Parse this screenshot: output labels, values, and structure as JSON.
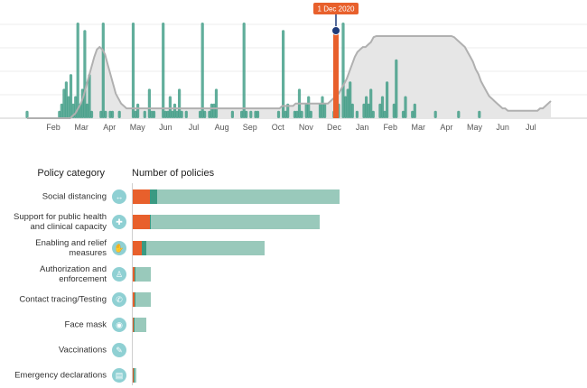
{
  "timeline": {
    "month_labels": [
      "Feb",
      "Mar",
      "Apr",
      "May",
      "Jun",
      "Jul",
      "Aug",
      "Sep",
      "Oct",
      "Nov",
      "Dec",
      "Jan",
      "Feb",
      "Mar",
      "Apr",
      "May",
      "Jun",
      "Jul"
    ],
    "marker_label": "1 Dec 2020",
    "marker_month_index": 10,
    "marker_color": "#e8602c",
    "marker_dot_color": "#1f3b7a",
    "bar_color": "#3a9a82",
    "case_area_color": "#e6e6e6",
    "case_line_color": "#b0b0b0",
    "weekly_policy_counts": [
      1,
      0,
      0,
      0,
      0,
      0,
      0,
      0,
      0,
      0,
      0,
      0,
      0,
      0,
      1,
      2,
      4,
      5,
      3,
      6,
      2,
      3,
      13,
      2,
      4,
      12,
      2,
      6,
      1,
      0,
      0,
      0,
      1,
      13,
      1,
      0,
      1,
      1,
      0,
      0,
      1,
      0,
      0,
      0,
      0,
      0,
      13,
      1,
      2,
      0,
      0,
      1,
      0,
      4,
      1,
      1,
      0,
      0,
      0,
      13,
      1,
      1,
      3,
      1,
      2,
      1,
      4,
      1,
      0,
      1,
      0,
      0,
      0,
      0,
      0,
      1,
      13,
      1,
      0,
      1,
      2,
      2,
      4,
      0,
      0,
      0,
      0,
      0,
      0,
      1,
      0,
      0,
      0,
      1,
      13,
      1,
      0,
      1,
      0,
      1,
      1,
      0,
      0,
      0,
      0,
      0,
      0,
      0,
      0,
      1,
      0,
      12,
      1,
      2,
      0,
      0,
      1,
      1,
      4,
      1,
      0,
      2,
      3,
      1,
      0,
      0,
      0,
      2,
      3,
      2,
      0,
      0,
      0,
      1,
      0,
      2,
      0,
      13,
      3,
      4,
      5,
      2,
      0,
      1,
      0,
      0,
      2,
      3,
      2,
      4,
      1,
      0,
      0,
      2,
      3,
      1,
      5,
      0,
      0,
      2,
      8,
      0,
      0,
      1,
      3,
      0,
      0,
      1,
      2,
      0,
      0,
      0,
      0,
      0,
      0,
      0,
      0,
      1,
      0,
      0,
      0,
      0,
      0,
      0,
      0,
      0,
      0,
      1,
      0,
      0,
      0,
      0,
      0,
      0,
      0,
      0,
      1,
      0,
      0,
      0,
      0,
      0,
      0,
      0,
      0,
      0,
      0,
      0,
      0,
      0,
      0,
      0,
      0,
      0,
      0,
      0,
      0,
      0,
      0,
      0,
      0,
      0,
      0,
      0,
      0,
      0,
      0,
      0
    ],
    "case_curve": [
      0,
      0,
      0,
      0,
      0,
      0,
      0,
      0,
      0,
      0,
      0,
      0,
      0,
      0,
      0,
      0,
      0,
      1,
      2,
      4,
      6,
      9,
      13,
      17,
      21,
      25,
      28,
      29,
      28,
      26,
      22,
      18,
      14,
      10,
      8,
      6,
      5,
      4,
      4,
      4,
      4,
      4,
      4,
      4,
      4,
      4,
      4,
      4,
      4,
      4,
      4,
      4,
      4,
      4,
      4,
      4,
      4,
      4,
      4,
      4,
      4,
      4,
      4,
      4,
      4,
      4,
      4,
      4,
      4,
      4,
      4,
      4,
      4,
      4,
      4,
      4,
      4,
      4,
      4,
      4,
      4,
      4,
      4,
      4,
      4,
      4,
      4,
      4,
      4,
      4,
      4,
      4,
      4,
      4,
      4,
      5,
      5,
      5,
      5,
      5,
      6,
      6,
      6,
      6,
      6,
      6,
      6,
      6,
      6,
      6,
      6,
      6,
      6,
      7,
      8,
      9,
      10,
      12,
      14,
      16,
      19,
      22,
      25,
      27,
      28,
      29,
      29,
      30,
      31,
      33,
      36,
      40,
      44,
      48,
      51,
      53,
      54,
      55,
      55,
      54,
      52,
      49,
      46,
      43,
      41,
      39,
      38,
      37,
      37,
      37,
      37,
      38,
      38,
      38,
      37,
      37,
      36,
      35,
      34,
      33,
      32,
      31,
      30,
      29,
      27,
      25,
      23,
      20,
      18,
      15,
      13,
      11,
      9,
      8,
      7,
      6,
      5,
      4,
      4,
      3,
      3,
      3,
      3,
      3,
      3,
      3,
      3,
      3,
      3,
      3,
      3,
      4,
      4,
      5,
      6,
      7
    ]
  },
  "headers": {
    "category": "Policy category",
    "number": "Number of policies"
  },
  "chart_data": {
    "type": "bar",
    "stacked": true,
    "orientation": "horizontal",
    "title": "",
    "xlabel": "Number of policies",
    "ylabel": "Policy category",
    "categories": [
      "Social distancing",
      "Support for public health and clinical capacity",
      "Enabling and relief measures",
      "Authorization and enforcement",
      "Contact tracing/Testing",
      "Face mask",
      "Vaccinations",
      "Emergency declarations"
    ],
    "icons": [
      "distancing-icon",
      "health-support-icon",
      "relief-icon",
      "enforcement-icon",
      "contact-tracing-icon",
      "face-mask-icon",
      "vaccine-icon",
      "declaration-icon"
    ],
    "icon_glyphs": [
      "↔",
      "✚",
      "✋",
      "♙",
      "✆",
      "◉",
      "✎",
      "▤"
    ],
    "series": [
      {
        "values": [
          9,
          9,
          5,
          1,
          1,
          0.5,
          0,
          0.5
        ],
        "color": "#e8602c"
      },
      {
        "values": [
          4,
          0.5,
          2,
          0.5,
          0.5,
          0.5,
          0,
          0.5
        ],
        "color": "#3a9a82"
      },
      {
        "values": [
          97,
          90,
          63,
          8,
          8,
          6,
          0,
          1
        ],
        "color": "#99c9bb"
      }
    ],
    "xlim": [
      0,
      110
    ],
    "icon_color": "#8fd0d3"
  }
}
